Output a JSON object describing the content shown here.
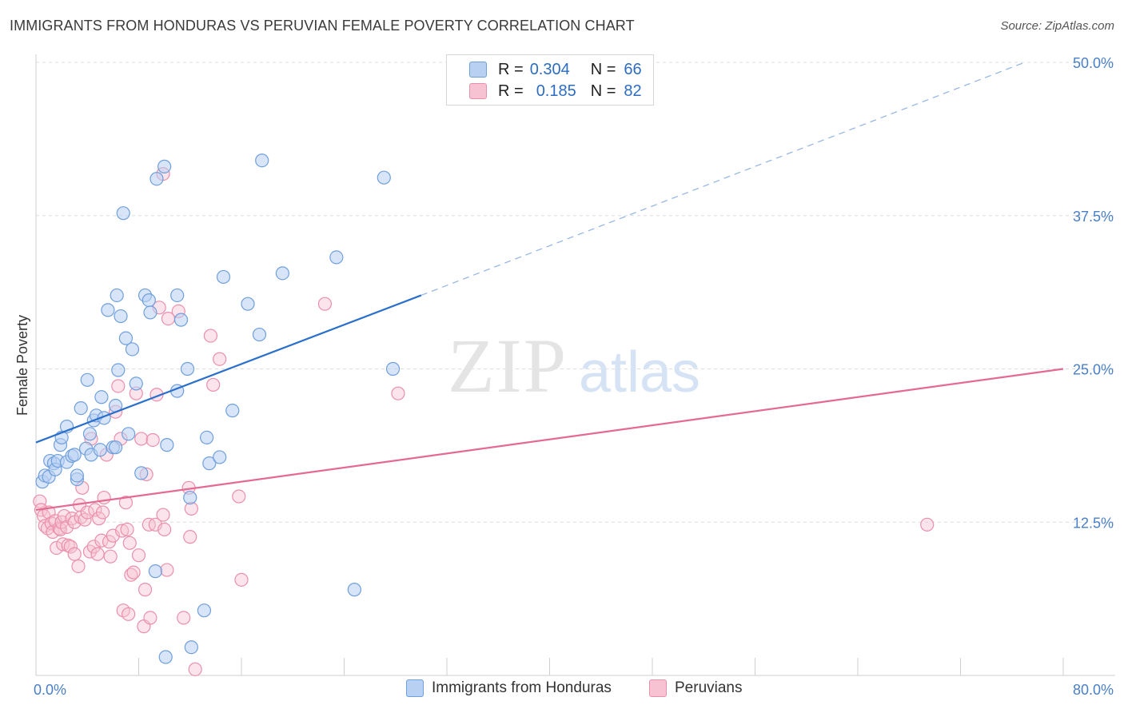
{
  "title": "IMMIGRANTS FROM HONDURAS VS PERUVIAN FEMALE POVERTY CORRELATION CHART",
  "source": "Source: ZipAtlas.com",
  "watermark": {
    "zip": "ZIP",
    "atlas": "atlas"
  },
  "colors": {
    "blue_fill": "#b8d0f2",
    "blue_stroke": "#6f9fdc",
    "blue_line": "#2a6fcb",
    "pink_fill": "#f7c3d2",
    "pink_stroke": "#ea8fab",
    "pink_line": "#e46a92",
    "axis_text": "#4a7fc8",
    "grid": "#dcdcdc"
  },
  "legend": {
    "row1": {
      "r_label": "R =",
      "r_value": "0.304",
      "n_label": "N =",
      "n_value": "66"
    },
    "row2": {
      "r_label": "R =",
      "r_value": "0.185",
      "n_label": "N =",
      "n_value": "82"
    }
  },
  "chart_data": {
    "type": "scatter",
    "title": "IMMIGRANTS FROM HONDURAS VS PERUVIAN FEMALE POVERTY CORRELATION CHART",
    "xlabel": "",
    "ylabel": "Female Poverty",
    "xlim": [
      0,
      80
    ],
    "ylim": [
      0,
      50
    ],
    "x_tick_labels": [
      "0.0%",
      "80.0%"
    ],
    "y_ticks": [
      12.5,
      25.0,
      37.5,
      50.0
    ],
    "y_tick_labels": [
      "12.5%",
      "25.0%",
      "37.5%",
      "50.0%"
    ],
    "grid": true,
    "legend_position": "top-center",
    "series": [
      {
        "name": "Immigrants from Honduras",
        "color": "#b8d0f2",
        "trend": {
          "x0": 0,
          "y0": 19.0,
          "x1": 30.0,
          "y1": 31.0,
          "dash_to_x": 77,
          "dash_to_y": 50.0
        },
        "points": [
          [
            0.5,
            15.8
          ],
          [
            0.7,
            16.3
          ],
          [
            1.0,
            16.2
          ],
          [
            1.1,
            17.5
          ],
          [
            1.4,
            17.3
          ],
          [
            1.5,
            16.8
          ],
          [
            1.7,
            17.5
          ],
          [
            1.9,
            18.8
          ],
          [
            2.0,
            19.4
          ],
          [
            2.4,
            17.4
          ],
          [
            2.4,
            20.3
          ],
          [
            2.8,
            17.9
          ],
          [
            3.0,
            18.0
          ],
          [
            3.2,
            16.0
          ],
          [
            3.2,
            16.3
          ],
          [
            3.5,
            21.8
          ],
          [
            3.9,
            18.5
          ],
          [
            4.0,
            24.1
          ],
          [
            4.2,
            19.7
          ],
          [
            4.3,
            18.0
          ],
          [
            4.5,
            20.8
          ],
          [
            4.7,
            21.2
          ],
          [
            5.0,
            18.4
          ],
          [
            5.1,
            22.7
          ],
          [
            5.3,
            21.0
          ],
          [
            5.6,
            29.8
          ],
          [
            6.0,
            18.6
          ],
          [
            6.2,
            18.6
          ],
          [
            6.2,
            22.0
          ],
          [
            6.3,
            31.0
          ],
          [
            6.4,
            24.9
          ],
          [
            6.6,
            29.3
          ],
          [
            6.8,
            37.7
          ],
          [
            7.0,
            27.5
          ],
          [
            7.2,
            19.7
          ],
          [
            7.5,
            26.6
          ],
          [
            7.8,
            23.8
          ],
          [
            8.2,
            16.5
          ],
          [
            8.5,
            31.0
          ],
          [
            8.8,
            30.6
          ],
          [
            8.9,
            29.6
          ],
          [
            9.3,
            8.5
          ],
          [
            9.4,
            40.5
          ],
          [
            10.0,
            41.5
          ],
          [
            10.2,
            18.8
          ],
          [
            10.1,
            1.5
          ],
          [
            11.0,
            31.0
          ],
          [
            11.0,
            23.2
          ],
          [
            11.3,
            29.0
          ],
          [
            11.8,
            25.0
          ],
          [
            12.0,
            14.5
          ],
          [
            12.1,
            2.3
          ],
          [
            13.1,
            5.3
          ],
          [
            13.3,
            19.4
          ],
          [
            13.5,
            17.3
          ],
          [
            14.3,
            17.8
          ],
          [
            14.6,
            32.5
          ],
          [
            15.3,
            21.6
          ],
          [
            16.5,
            30.3
          ],
          [
            17.4,
            27.8
          ],
          [
            17.6,
            42.0
          ],
          [
            19.2,
            32.8
          ],
          [
            23.4,
            34.1
          ],
          [
            24.8,
            7.0
          ],
          [
            27.1,
            40.6
          ],
          [
            27.8,
            25.0
          ]
        ]
      },
      {
        "name": "Peruvians",
        "color": "#f7c3d2",
        "trend": {
          "x0": 0,
          "y0": 13.5,
          "x1": 80,
          "y1": 25.0
        },
        "points": [
          [
            0.3,
            14.2
          ],
          [
            0.4,
            13.5
          ],
          [
            0.6,
            13.0
          ],
          [
            0.7,
            12.2
          ],
          [
            0.9,
            12.0
          ],
          [
            1.0,
            13.3
          ],
          [
            1.2,
            12.4
          ],
          [
            1.3,
            11.7
          ],
          [
            1.5,
            12.6
          ],
          [
            1.6,
            10.4
          ],
          [
            1.8,
            12.0
          ],
          [
            1.9,
            11.9
          ],
          [
            2.0,
            12.5
          ],
          [
            2.1,
            10.7
          ],
          [
            2.2,
            13.0
          ],
          [
            2.4,
            12.1
          ],
          [
            2.5,
            10.6
          ],
          [
            2.7,
            10.5
          ],
          [
            2.8,
            12.8
          ],
          [
            3.0,
            9.9
          ],
          [
            3.0,
            12.5
          ],
          [
            3.3,
            8.9
          ],
          [
            3.4,
            13.9
          ],
          [
            3.5,
            12.9
          ],
          [
            3.6,
            15.3
          ],
          [
            3.8,
            12.7
          ],
          [
            4.0,
            13.3
          ],
          [
            4.2,
            10.1
          ],
          [
            4.3,
            19.3
          ],
          [
            4.5,
            10.5
          ],
          [
            4.6,
            13.5
          ],
          [
            4.8,
            9.9
          ],
          [
            4.9,
            12.8
          ],
          [
            5.1,
            11.0
          ],
          [
            5.2,
            13.3
          ],
          [
            5.3,
            14.5
          ],
          [
            5.5,
            18.0
          ],
          [
            5.7,
            10.9
          ],
          [
            5.8,
            9.7
          ],
          [
            6.0,
            11.4
          ],
          [
            6.2,
            21.5
          ],
          [
            6.4,
            23.6
          ],
          [
            6.6,
            19.3
          ],
          [
            6.7,
            11.8
          ],
          [
            6.8,
            5.3
          ],
          [
            7.0,
            14.1
          ],
          [
            7.1,
            11.9
          ],
          [
            7.2,
            5.0
          ],
          [
            7.3,
            10.8
          ],
          [
            7.4,
            8.2
          ],
          [
            7.6,
            8.4
          ],
          [
            7.8,
            23.0
          ],
          [
            8.0,
            9.8
          ],
          [
            8.2,
            19.3
          ],
          [
            8.4,
            4.0
          ],
          [
            8.5,
            7.0
          ],
          [
            8.6,
            16.4
          ],
          [
            8.8,
            12.3
          ],
          [
            8.9,
            4.7
          ],
          [
            9.1,
            19.2
          ],
          [
            9.3,
            12.3
          ],
          [
            9.4,
            22.9
          ],
          [
            9.6,
            30.0
          ],
          [
            9.9,
            40.9
          ],
          [
            9.9,
            13.1
          ],
          [
            10.0,
            11.9
          ],
          [
            10.2,
            8.6
          ],
          [
            10.3,
            29.1
          ],
          [
            11.1,
            29.7
          ],
          [
            11.5,
            4.7
          ],
          [
            11.9,
            15.3
          ],
          [
            12.0,
            11.3
          ],
          [
            12.1,
            13.6
          ],
          [
            12.4,
            0.5
          ],
          [
            13.6,
            27.7
          ],
          [
            13.8,
            23.7
          ],
          [
            14.3,
            25.8
          ],
          [
            15.8,
            14.6
          ],
          [
            16.0,
            7.8
          ],
          [
            22.5,
            30.3
          ],
          [
            28.2,
            23.0
          ],
          [
            69.4,
            12.3
          ]
        ]
      }
    ]
  }
}
